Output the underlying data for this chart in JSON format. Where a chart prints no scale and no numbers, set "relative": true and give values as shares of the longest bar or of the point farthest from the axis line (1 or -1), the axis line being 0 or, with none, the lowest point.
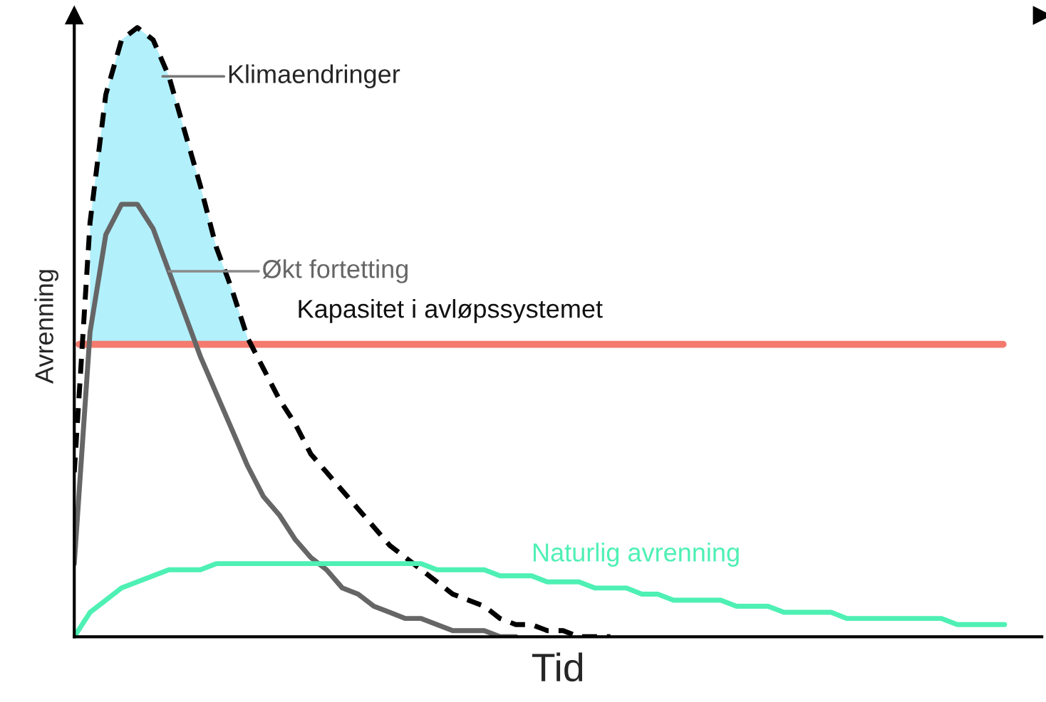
{
  "chart_data": {
    "type": "line",
    "relative": true,
    "xlabel": "Tid",
    "ylabel": "Avrenning",
    "legend": false,
    "categories": [
      null,
      null,
      null,
      null,
      null,
      null,
      null,
      null,
      null,
      null,
      null,
      null,
      null,
      null,
      null,
      null,
      null,
      null,
      null,
      null,
      null,
      null,
      null,
      null,
      null,
      null,
      null,
      null,
      null,
      null,
      null,
      null,
      null,
      null,
      null,
      null,
      null,
      null,
      null,
      null,
      null,
      null,
      null,
      null,
      null,
      null,
      null,
      null,
      null,
      null,
      null,
      null,
      null,
      null,
      null,
      null,
      null,
      null,
      null,
      null
    ],
    "series": [
      {
        "name": "Klimaendringer",
        "color": "#000000",
        "line_style": "dashed",
        "values": [
          0.27,
          0.68,
          0.89,
          0.98,
          1.0,
          0.98,
          0.92,
          0.83,
          0.74,
          0.64,
          0.57,
          0.49,
          0.44,
          0.39,
          0.35,
          0.3,
          0.27,
          0.24,
          0.21,
          0.18,
          0.15,
          0.13,
          0.11,
          0.09,
          0.07,
          0.06,
          0.05,
          0.03,
          0.02,
          0.02,
          0.01,
          0.01,
          0.0,
          0.0,
          0.0,
          null,
          null,
          null,
          null,
          null,
          null,
          null,
          null,
          null,
          null,
          null,
          null,
          null,
          null,
          null,
          null,
          null,
          null,
          null,
          null,
          null,
          null,
          null,
          null,
          null
        ],
        "lower": [
          null,
          0.48,
          0.48,
          0.48,
          0.48,
          0.48,
          0.48,
          0.48,
          0.48,
          0.48,
          0.48,
          0.48,
          null,
          null,
          null,
          null,
          null,
          null,
          null,
          null,
          null,
          null,
          null,
          null,
          null,
          null,
          null,
          null,
          null,
          null,
          null,
          null,
          null,
          null,
          null,
          null,
          null,
          null,
          null,
          null,
          null,
          null,
          null,
          null,
          null,
          null,
          null,
          null,
          null,
          null,
          null,
          null,
          null,
          null,
          null,
          null,
          null,
          null,
          null,
          null
        ],
        "upper": [
          null,
          0.68,
          0.89,
          0.98,
          1.0,
          0.98,
          0.92,
          0.83,
          0.74,
          0.64,
          0.57,
          0.49,
          null,
          null,
          null,
          null,
          null,
          null,
          null,
          null,
          null,
          null,
          null,
          null,
          null,
          null,
          null,
          null,
          null,
          null,
          null,
          null,
          null,
          null,
          null,
          null,
          null,
          null,
          null,
          null,
          null,
          null,
          null,
          null,
          null,
          null,
          null,
          null,
          null,
          null,
          null,
          null,
          null,
          null,
          null,
          null,
          null,
          null,
          null,
          null
        ]
      },
      {
        "name": "Økt fortetting",
        "color": "#666666",
        "line_style": "solid",
        "values": [
          0.12,
          0.5,
          0.66,
          0.71,
          0.71,
          0.67,
          0.6,
          0.53,
          0.46,
          0.4,
          0.34,
          0.28,
          0.23,
          0.2,
          0.16,
          0.13,
          0.11,
          0.08,
          0.07,
          0.05,
          0.04,
          0.03,
          0.03,
          0.02,
          0.01,
          0.01,
          0.01,
          0.0,
          0.0,
          null,
          null,
          null,
          null,
          null,
          null,
          null,
          null,
          null,
          null,
          null,
          null,
          null,
          null,
          null,
          null,
          null,
          null,
          null,
          null,
          null,
          null,
          null,
          null,
          null,
          null,
          null,
          null,
          null,
          null,
          null
        ]
      },
      {
        "name": "Naturlig avrenning",
        "color": "#4ef0b4",
        "line_style": "solid",
        "values": [
          0.0,
          0.04,
          0.06,
          0.08,
          0.09,
          0.1,
          0.11,
          0.11,
          0.11,
          0.12,
          0.12,
          0.12,
          0.12,
          0.12,
          0.12,
          0.12,
          0.12,
          0.12,
          0.12,
          0.12,
          0.12,
          0.12,
          0.12,
          0.11,
          0.11,
          0.11,
          0.11,
          0.1,
          0.1,
          0.1,
          0.09,
          0.09,
          0.09,
          0.08,
          0.08,
          0.08,
          0.07,
          0.07,
          0.06,
          0.06,
          0.06,
          0.06,
          0.05,
          0.05,
          0.05,
          0.04,
          0.04,
          0.04,
          0.04,
          0.03,
          0.03,
          0.03,
          0.03,
          0.03,
          0.03,
          0.03,
          0.02,
          0.02,
          0.02,
          0.02
        ]
      }
    ],
    "ref_lines": [
      {
        "axis": "y",
        "value": 0.48,
        "label": "Kapasitet i avløpssystemet",
        "color": "#f47a6e"
      }
    ]
  }
}
